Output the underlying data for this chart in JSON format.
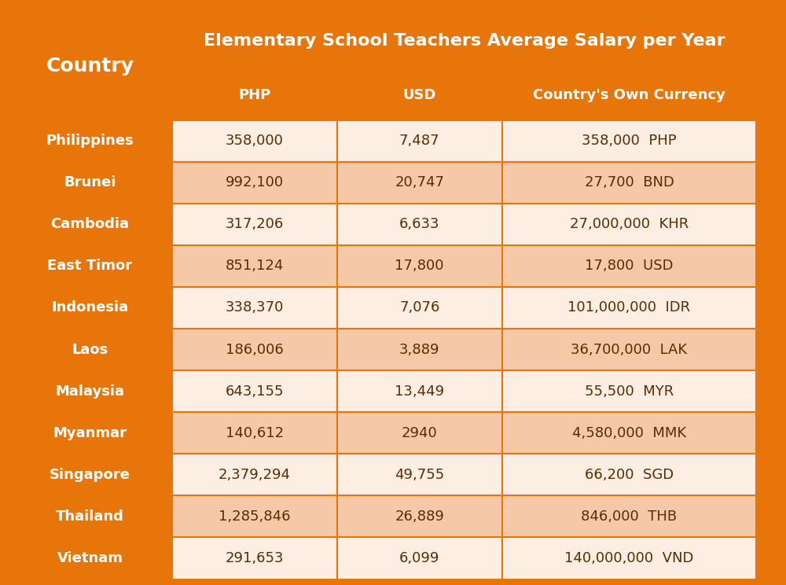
{
  "title": "Elementary School Teachers Average Salary per Year",
  "col_headers": [
    "PHP",
    "USD",
    "Country's Own Currency"
  ],
  "row_header": "Country",
  "rows": [
    [
      "Philippines",
      "358,000",
      "7,487",
      "358,000  PHP"
    ],
    [
      "Brunei",
      "992,100",
      "20,747",
      "27,700  BND"
    ],
    [
      "Cambodia",
      "317,206",
      "6,633",
      "27,000,000  KHR"
    ],
    [
      "East Timor",
      "851,124",
      "17,800",
      "17,800  USD"
    ],
    [
      "Indonesia",
      "338,370",
      "7,076",
      "101,000,000  IDR"
    ],
    [
      "Laos",
      "186,006",
      "3,889",
      "36,700,000  LAK"
    ],
    [
      "Malaysia",
      "643,155",
      "13,449",
      "55,500  MYR"
    ],
    [
      "Myanmar",
      "140,612",
      "2940",
      "4,580,000  MMK"
    ],
    [
      "Singapore",
      "2,379,294",
      "49,755",
      "66,200  SGD"
    ],
    [
      "Thailand",
      "1,285,846",
      "26,889",
      "846,000  THB"
    ],
    [
      "Vietnam",
      "291,653",
      "6,099",
      "140,000,000  VND"
    ]
  ],
  "orange_color": "#E8750A",
  "light_orange_color": "#F5C9A8",
  "lighter_orange_color": "#FDEEE4",
  "white_color": "#FFFFFF",
  "title_bg_color": "#E8750A",
  "header_bg_color": "#E8750A",
  "country_col_bg_color": "#E8750A",
  "row_bg_odd": "#FDEEE4",
  "row_bg_even": "#F5C9A8",
  "title_text_color": "#FFFFFF",
  "header_text_color": "#FFFFFF",
  "country_text_color": "#FFFFFF",
  "data_text_color": "#5A2D00",
  "title_fontsize": 16,
  "header_fontsize": 13,
  "country_fontsize": 13,
  "data_fontsize": 13
}
